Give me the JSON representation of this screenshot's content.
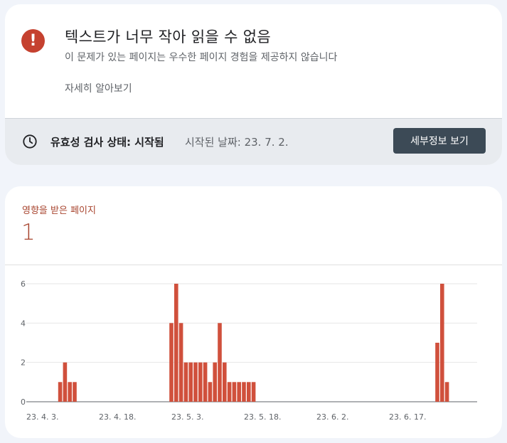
{
  "issue": {
    "title": "텍스트가 너무 작아 읽을 수 없음",
    "subtitle": "이 문제가 있는 페이지는 우수한 페이지 경험을 제공하지 않습니다",
    "learn_more": "자세히 알아보기",
    "icon": "error-icon",
    "icon_color": "#c5412f"
  },
  "validation": {
    "status": "유효성 검사 상태: 시작됨",
    "started": "시작된 날짜: 23. 7. 2.",
    "details_button": "세부정보 보기",
    "icon": "clock-icon"
  },
  "affected": {
    "label": "영향을 받은 페이지",
    "count": "1",
    "accent": "#a8452f"
  },
  "chart_data": {
    "type": "bar",
    "color": "#d0503c",
    "x_tick_labels": [
      "23. 4. 3.",
      "23. 4. 18.",
      "23. 5. 3.",
      "23. 5. 18.",
      "23. 6. 2.",
      "23. 6. 17."
    ],
    "y_ticks": [
      0,
      2,
      4,
      6
    ],
    "ylim": [
      0,
      6
    ],
    "grid": true,
    "x": [
      "2023-04-10",
      "2023-04-11",
      "2023-04-12",
      "2023-04-13",
      "2023-05-03",
      "2023-05-04",
      "2023-05-05",
      "2023-05-06",
      "2023-05-07",
      "2023-05-08",
      "2023-05-09",
      "2023-05-10",
      "2023-05-11",
      "2023-05-12",
      "2023-05-13",
      "2023-05-14",
      "2023-05-15",
      "2023-05-16",
      "2023-05-17",
      "2023-05-18",
      "2023-05-19",
      "2023-05-20",
      "2023-06-27",
      "2023-06-28",
      "2023-06-29"
    ],
    "values": [
      1,
      2,
      1,
      1,
      4,
      6,
      4,
      2,
      2,
      2,
      2,
      2,
      1,
      2,
      4,
      2,
      1,
      1,
      1,
      1,
      1,
      1,
      3,
      6,
      1
    ]
  }
}
